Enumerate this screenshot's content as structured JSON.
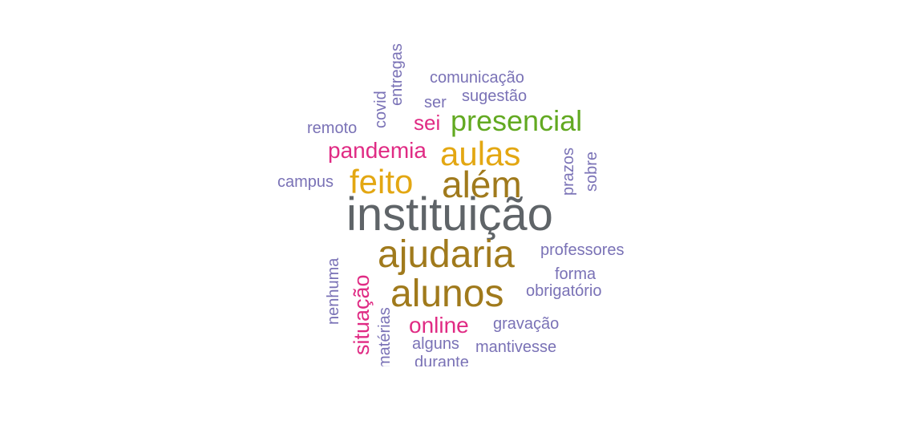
{
  "colors": {
    "gray": "#5f6468",
    "brown": "#a07a1c",
    "gold": "#e3a712",
    "green": "#62a921",
    "magenta": "#e02b84",
    "lavender": "#7a72b6"
  },
  "words": [
    {
      "id": "instituicao",
      "text": "instituição",
      "color": "gray",
      "rotated": false
    },
    {
      "id": "alem",
      "text": "além",
      "color": "brown",
      "rotated": false
    },
    {
      "id": "ajudaria",
      "text": "ajudaria",
      "color": "brown",
      "rotated": false
    },
    {
      "id": "alunos",
      "text": "alunos",
      "color": "brown",
      "rotated": false
    },
    {
      "id": "aulas",
      "text": "aulas",
      "color": "gold",
      "rotated": false
    },
    {
      "id": "feito",
      "text": "feito",
      "color": "gold",
      "rotated": false
    },
    {
      "id": "presencial",
      "text": "presencial",
      "color": "green",
      "rotated": false
    },
    {
      "id": "pandemia",
      "text": "pandemia",
      "color": "magenta",
      "rotated": false
    },
    {
      "id": "sei",
      "text": "sei",
      "color": "magenta",
      "rotated": false
    },
    {
      "id": "online",
      "text": "online",
      "color": "magenta",
      "rotated": false
    },
    {
      "id": "situacao",
      "text": "situação",
      "color": "magenta",
      "rotated": true
    },
    {
      "id": "comunicacao",
      "text": "comunicação",
      "color": "lavender",
      "rotated": false
    },
    {
      "id": "sugestao",
      "text": "sugestão",
      "color": "lavender",
      "rotated": false
    },
    {
      "id": "ser",
      "text": "ser",
      "color": "lavender",
      "rotated": false
    },
    {
      "id": "remoto",
      "text": "remoto",
      "color": "lavender",
      "rotated": false
    },
    {
      "id": "campus",
      "text": "campus",
      "color": "lavender",
      "rotated": false
    },
    {
      "id": "covid",
      "text": "covid",
      "color": "lavender",
      "rotated": true
    },
    {
      "id": "entregas",
      "text": "entregas",
      "color": "lavender",
      "rotated": true
    },
    {
      "id": "prazos",
      "text": "prazos",
      "color": "lavender",
      "rotated": true
    },
    {
      "id": "sobre",
      "text": "sobre",
      "color": "lavender",
      "rotated": true
    },
    {
      "id": "professores",
      "text": "professores",
      "color": "lavender",
      "rotated": false
    },
    {
      "id": "forma",
      "text": "forma",
      "color": "lavender",
      "rotated": false
    },
    {
      "id": "obrigatorio",
      "text": "obrigatório",
      "color": "lavender",
      "rotated": false
    },
    {
      "id": "gravacao",
      "text": "gravação",
      "color": "lavender",
      "rotated": false
    },
    {
      "id": "mantivesse",
      "text": "mantivesse",
      "color": "lavender",
      "rotated": false
    },
    {
      "id": "alguns",
      "text": "alguns",
      "color": "lavender",
      "rotated": false
    },
    {
      "id": "durante",
      "text": "durante",
      "color": "lavender",
      "rotated": false
    },
    {
      "id": "nenhuma",
      "text": "nenhuma",
      "color": "lavender",
      "rotated": true
    },
    {
      "id": "materias",
      "text": "matérias",
      "color": "lavender",
      "rotated": true
    }
  ]
}
